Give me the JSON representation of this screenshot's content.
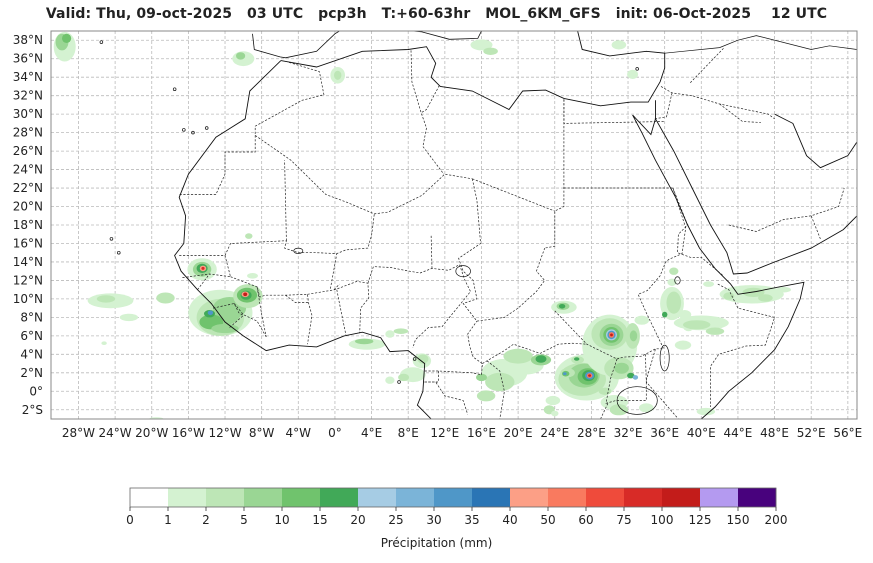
{
  "title": "Valid: Thu, 09-oct-2025   03 UTC   pcp3h   T:+60-63hr   MOL_6KM_GFS   init: 06-Oct-2025    12 UTC",
  "map": {
    "lon_range": [
      -31,
      57
    ],
    "lat_range": [
      -3,
      39
    ],
    "lon_ticks": [
      "28°W",
      "24°W",
      "20°W",
      "16°W",
      "12°W",
      "8°W",
      "4°W",
      "0°",
      "4°E",
      "8°E",
      "12°E",
      "16°E",
      "20°E",
      "24°E",
      "28°E",
      "32°E",
      "36°E",
      "40°E",
      "44°E",
      "48°E",
      "52°E",
      "56°E"
    ],
    "lon_tick_values": [
      -28,
      -24,
      -20,
      -16,
      -12,
      -8,
      -4,
      0,
      4,
      8,
      12,
      16,
      20,
      24,
      28,
      32,
      36,
      40,
      44,
      48,
      52,
      56
    ],
    "lat_ticks": [
      "2°S",
      "0°",
      "2°N",
      "4°N",
      "6°N",
      "8°N",
      "10°N",
      "12°N",
      "14°N",
      "16°N",
      "18°N",
      "20°N",
      "22°N",
      "24°N",
      "26°N",
      "28°N",
      "30°N",
      "32°N",
      "34°N",
      "36°N",
      "38°N"
    ],
    "lat_tick_values": [
      -2,
      0,
      2,
      4,
      6,
      8,
      10,
      12,
      14,
      16,
      18,
      20,
      22,
      24,
      26,
      28,
      30,
      32,
      34,
      36,
      38
    ],
    "gridlines": true,
    "coastline_color": "#000000",
    "border_color": "#222222"
  },
  "colorbar": {
    "label": "Précipitation (mm)",
    "ticks": [
      "0",
      "1",
      "2",
      "5",
      "10",
      "15",
      "20",
      "25",
      "30",
      "35",
      "40",
      "50",
      "60",
      "75",
      "100",
      "125",
      "150",
      "200"
    ],
    "colors": [
      "#ffffff",
      "#d4f2d1",
      "#bde6b6",
      "#9ad694",
      "#70c36d",
      "#41a958",
      "#a6cce4",
      "#7bb4d8",
      "#4f97c8",
      "#2a75b5",
      "#fc9f86",
      "#f97a5f",
      "#ef4b3b",
      "#d82b27",
      "#c31c1a",
      "#b49af0",
      "#48027d"
    ]
  }
}
